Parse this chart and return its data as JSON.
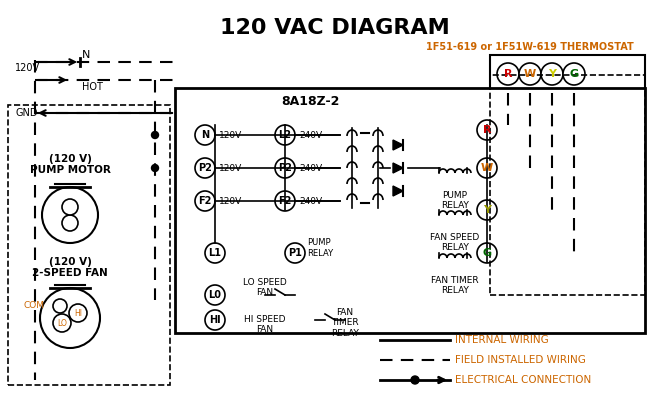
{
  "title": "120 VAC DIAGRAM",
  "title_color": "#000000",
  "title_fontsize": 16,
  "background_color": "#ffffff",
  "thermostat_label": "1F51-619 or 1F51W-619 THERMOSTAT",
  "thermostat_color": "#cc6600",
  "box_label": "8A18Z-2",
  "pump_motor_label": "PUMP MOTOR\n(120 V)",
  "fan_label": "2-SPEED FAN\n(120 V)",
  "legend_items": [
    {
      "label": "INTERNAL WIRING",
      "style": "solid"
    },
    {
      "label": "FIELD INSTALLED WIRING",
      "style": "dashed"
    },
    {
      "label": "ELECTRICAL CONNECTION",
      "style": "dot"
    }
  ],
  "legend_color": "#cc6600",
  "orange_color": "#cc6600",
  "black_color": "#000000"
}
